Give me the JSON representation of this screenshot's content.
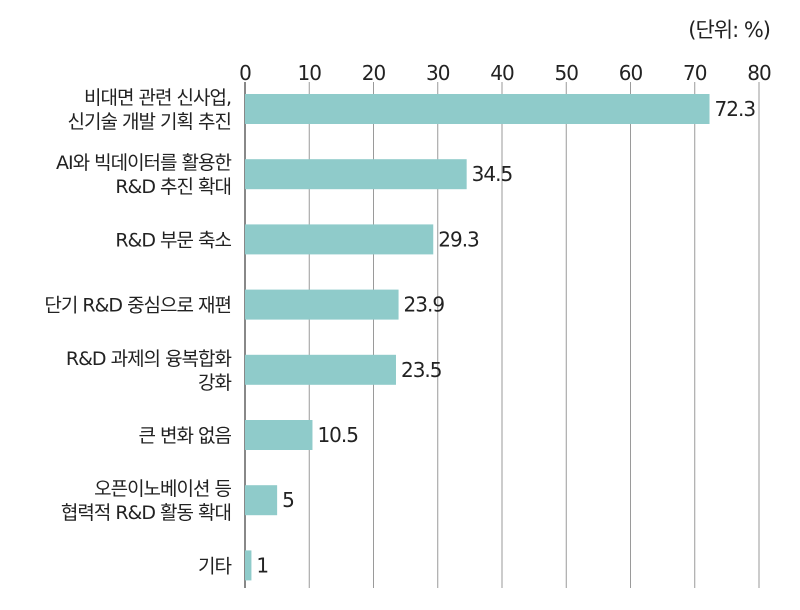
{
  "unit_label": "(단위: %)",
  "chart_data": {
    "type": "bar",
    "orientation": "horizontal",
    "unit": "%",
    "xlim": [
      0,
      80
    ],
    "ticks": [
      0,
      10,
      20,
      30,
      40,
      50,
      60,
      70,
      80
    ],
    "grid": true,
    "bar_color": "#8fcbca",
    "categories": [
      [
        "비대면 관련 신사업,",
        "신기술 개발 기획 추진"
      ],
      [
        "AI와 빅데이터를 활용한",
        "R&D 추진 확대"
      ],
      [
        "R&D 부문 축소"
      ],
      [
        "단기 R&D 중심으로 재편"
      ],
      [
        "R&D 과제의 융복합화",
        "강화"
      ],
      [
        "큰 변화 없음"
      ],
      [
        "오픈이노베이션 등",
        "협력적 R&D 활동 확대"
      ],
      [
        "기타"
      ]
    ],
    "values": [
      72.3,
      34.5,
      29.3,
      23.9,
      23.5,
      10.5,
      5,
      1
    ],
    "value_labels": [
      "72.3",
      "34.5",
      "29.3",
      "23.9",
      "23.5",
      "10.5",
      "5",
      "1"
    ]
  }
}
